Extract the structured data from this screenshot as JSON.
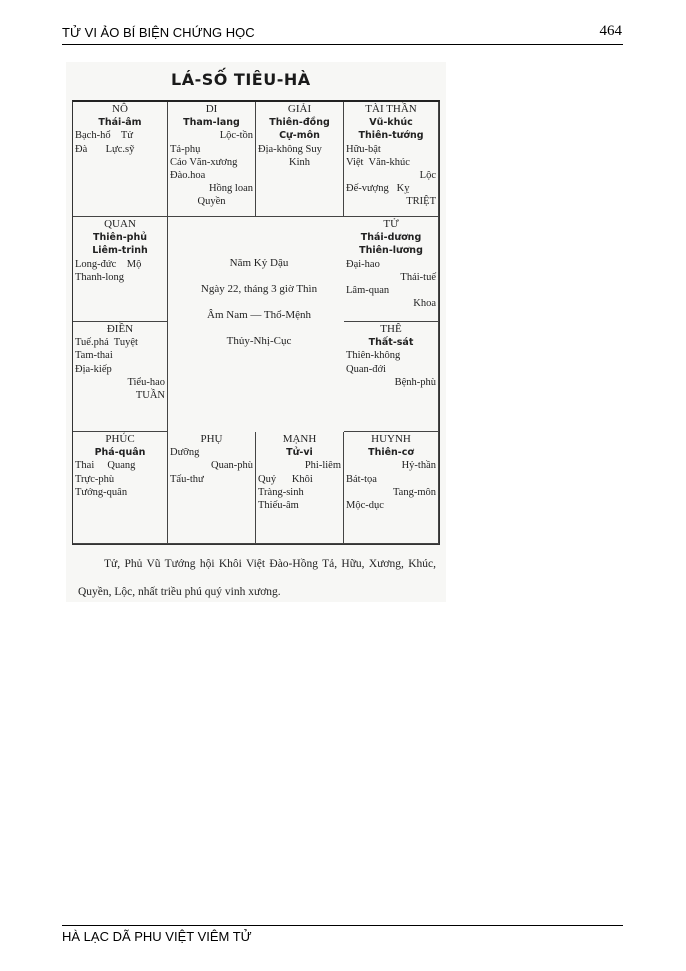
{
  "header": {
    "title": "TỬ VI ẢO BÍ BIỆN CHỨNG HỌC",
    "page_number": "464"
  },
  "footer": {
    "text": "HÀ LẠC DÃ PHU VIỆT VIÊM TỬ"
  },
  "scan": {
    "title": "LÁ-SỐ TIÊU-HÀ",
    "cells": [
      {
        "lines": [
          {
            "t": "NÔ",
            "a": "h"
          },
          {
            "t": "Thái-âm",
            "a": "c b"
          },
          {
            "t": "Bạch-hổ    Tử",
            "a": ""
          },
          {
            "t": "Đà       Lực.sỹ",
            "a": ""
          }
        ]
      },
      {
        "lines": [
          {
            "t": "DI",
            "a": "h"
          },
          {
            "t": "Tham-lang",
            "a": "c b"
          },
          {
            "t": "Lộc-tồn",
            "a": "r"
          },
          {
            "t": "Tả-phụ",
            "a": ""
          },
          {
            "t": "Cáo Văn-xương",
            "a": ""
          },
          {
            "t": "Đào.hoa",
            "a": ""
          },
          {
            "t": "Hồng loan",
            "a": "r"
          },
          {
            "t": "Quyền",
            "a": "c"
          }
        ]
      },
      {
        "lines": [
          {
            "t": "GIẢI",
            "a": "h"
          },
          {
            "t": "Thiên-đồng",
            "a": "c b"
          },
          {
            "t": "Cự-môn",
            "a": "c b"
          },
          {
            "t": "Địa-không Suy",
            "a": ""
          },
          {
            "t": "Kinh",
            "a": "c"
          }
        ]
      },
      {
        "lines": [
          {
            "t": "TÀI THẦN",
            "a": "h"
          },
          {
            "t": "Vũ-khúc",
            "a": "c b"
          },
          {
            "t": "Thiên-tướng",
            "a": "c b"
          },
          {
            "t": "Hữu-bật",
            "a": ""
          },
          {
            "t": "Việt  Văn-khúc",
            "a": ""
          },
          {
            "t": "Lộc",
            "a": "r"
          },
          {
            "t": "Đế-vượng   Kỵ",
            "a": ""
          },
          {
            "t": "TRIỆT",
            "a": "r"
          }
        ]
      },
      {
        "lines": [
          {
            "t": "QUAN",
            "a": "h"
          },
          {
            "t": "Thiên-phủ",
            "a": "c b"
          },
          {
            "t": "Liêm-trinh",
            "a": "c b"
          },
          {
            "t": "Long-đức    Mộ",
            "a": ""
          },
          {
            "t": "Thanh-long",
            "a": ""
          }
        ]
      },
      {
        "lines": [
          {
            "t": "TỬ",
            "a": "h"
          },
          {
            "t": "Thái-dương",
            "a": "c b"
          },
          {
            "t": "Thiên-lương",
            "a": "c b"
          },
          {
            "t": "Đại-hao",
            "a": ""
          },
          {
            "t": "Thái-tuế",
            "a": "r"
          },
          {
            "t": "Lâm-quan",
            "a": ""
          },
          {
            "t": "Khoa",
            "a": "r"
          }
        ]
      },
      {
        "lines": [
          {
            "t": "ĐIỀN",
            "a": "h"
          },
          {
            "t": "Tuế.phá  Tuyệt",
            "a": ""
          },
          {
            "t": "Tam-thai",
            "a": ""
          },
          {
            "t": "Địa-kiếp",
            "a": ""
          },
          {
            "t": "Tiểu-hao",
            "a": "r"
          },
          {
            "t": "TUẦN",
            "a": "r"
          }
        ]
      },
      {
        "lines": [
          {
            "t": "THÊ",
            "a": "h"
          },
          {
            "t": "Thất-sát",
            "a": "c b"
          },
          {
            "t": "Thiên-không",
            "a": ""
          },
          {
            "t": "Quan-đới",
            "a": ""
          },
          {
            "t": "Bệnh-phù",
            "a": "r"
          }
        ]
      },
      {
        "lines": [
          {
            "t": "PHÚC",
            "a": "h"
          },
          {
            "t": "Phá-quân",
            "a": "c b"
          },
          {
            "t": "Thai     Quang",
            "a": ""
          },
          {
            "t": "Trực-phù",
            "a": ""
          },
          {
            "t": "Tướng-quân",
            "a": ""
          }
        ]
      },
      {
        "lines": [
          {
            "t": "PHỤ",
            "a": "h"
          },
          {
            "t": "Dưỡng",
            "a": ""
          },
          {
            "t": "Quan-phù",
            "a": "r"
          },
          {
            "t": "Tấu-thư",
            "a": ""
          }
        ]
      },
      {
        "lines": [
          {
            "t": "MẠNH",
            "a": "h"
          },
          {
            "t": "Tử-vi",
            "a": "c b"
          },
          {
            "t": "Phi-liêm",
            "a": "r"
          },
          {
            "t": "Quý      Khôi",
            "a": ""
          },
          {
            "t": "Tràng-sinh",
            "a": ""
          },
          {
            "t": "Thiếu-âm",
            "a": ""
          }
        ]
      },
      {
        "lines": [
          {
            "t": "HUYNH",
            "a": "h"
          },
          {
            "t": "Thiên-cơ",
            "a": "c b"
          },
          {
            "t": "Hỷ-thần",
            "a": "r"
          },
          {
            "t": "Bát-tọa",
            "a": ""
          },
          {
            "t": "Tang-môn",
            "a": "r"
          },
          {
            "t": "Mộc-dục",
            "a": ""
          }
        ]
      }
    ],
    "center": [
      "Năm Kỷ Dậu",
      "Ngày 22, tháng 3 giờ Thìn",
      "Âm Nam — Thổ-Mệnh",
      "Thủy-Nhị-Cục"
    ],
    "caption": "Tử, Phủ Vũ Tướng hội Khôi Việt Đào-Hồng Tả, Hữu, Xương, Khúc, Quyền, Lộc, nhất triều phú quý vinh xương."
  }
}
